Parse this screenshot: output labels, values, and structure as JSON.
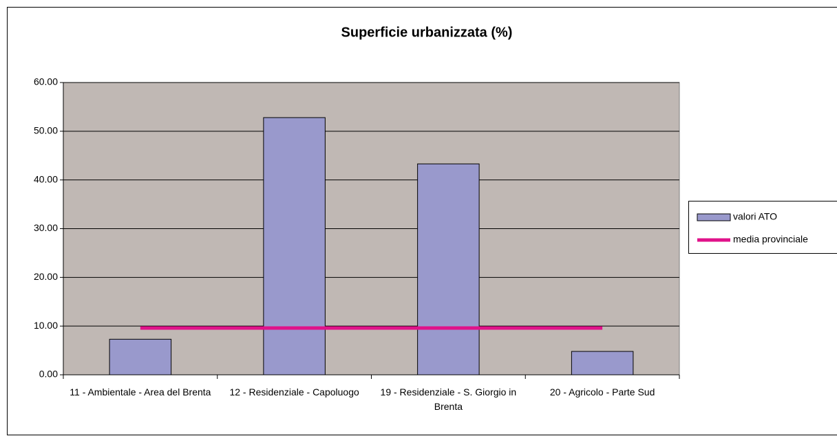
{
  "chart_data": {
    "type": "bar",
    "title": "Superficie urbanizzata (%)",
    "categories": [
      "11 - Ambientale - Area del Brenta",
      "12 - Residenziale - Capoluogo",
      "19 - Residenziale - S. Giorgio in Brenta",
      "20 - Agricolo - Parte Sud"
    ],
    "series": [
      {
        "name": "valori ATO",
        "type": "bar",
        "color": "#9999cc",
        "values": [
          7.3,
          52.8,
          43.3,
          4.8
        ]
      },
      {
        "name": "media provinciale",
        "type": "line",
        "color": "#e0128a",
        "values": [
          9.6,
          9.6,
          9.6,
          9.6
        ]
      }
    ],
    "ylim": [
      0,
      60
    ],
    "yticks": [
      {
        "value": 0,
        "label": "0.00"
      },
      {
        "value": 10,
        "label": "10.00"
      },
      {
        "value": 20,
        "label": "20.00"
      },
      {
        "value": 30,
        "label": "30.00"
      },
      {
        "value": 40,
        "label": "40.00"
      },
      {
        "value": 50,
        "label": "50.00"
      },
      {
        "value": 60,
        "label": "60.00"
      }
    ],
    "grid": true,
    "legend": "right",
    "plot_background": "#c0b8b4"
  }
}
